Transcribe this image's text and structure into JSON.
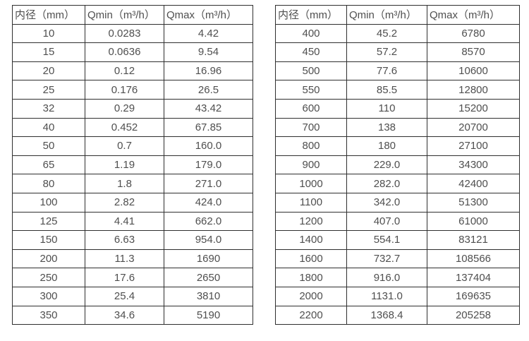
{
  "colors": {
    "background": "#ffffff",
    "border": "#2f2f2f",
    "text": "#4f4f4f"
  },
  "tables": [
    {
      "name": "flow-table-small-diameters",
      "headers": [
        "内径（mm）",
        "Qmin（m³/h）",
        "Qmax（m³/h）"
      ],
      "rows": [
        [
          "10",
          "0.0283",
          "4.42"
        ],
        [
          "15",
          "0.0636",
          "9.54"
        ],
        [
          "20",
          "0.12",
          "16.96"
        ],
        [
          "25",
          "0.176",
          "26.5"
        ],
        [
          "32",
          "0.29",
          "43.42"
        ],
        [
          "40",
          "0.452",
          "67.85"
        ],
        [
          "50",
          "0.7",
          "160.0"
        ],
        [
          "65",
          "1.19",
          "179.0"
        ],
        [
          "80",
          "1.8",
          "271.0"
        ],
        [
          "100",
          "2.82",
          "424.0"
        ],
        [
          "125",
          "4.41",
          "662.0"
        ],
        [
          "150",
          "6.63",
          "954.0"
        ],
        [
          "200",
          "11.3",
          "1690"
        ],
        [
          "250",
          "17.6",
          "2650"
        ],
        [
          "300",
          "25.4",
          "3810"
        ],
        [
          "350",
          "34.6",
          "5190"
        ]
      ]
    },
    {
      "name": "flow-table-large-diameters",
      "headers": [
        "内径（mm）",
        "Qmin（m³/h）",
        "Qmax（m³/h）"
      ],
      "rows": [
        [
          "400",
          "45.2",
          "6780"
        ],
        [
          "450",
          "57.2",
          "8570"
        ],
        [
          "500",
          "77.6",
          "10600"
        ],
        [
          "550",
          "85.5",
          "12800"
        ],
        [
          "600",
          "110",
          "15200"
        ],
        [
          "700",
          "138",
          "20700"
        ],
        [
          "800",
          "180",
          "27100"
        ],
        [
          "900",
          "229.0",
          "34300"
        ],
        [
          "1000",
          "282.0",
          "42400"
        ],
        [
          "1100",
          "342.0",
          "51300"
        ],
        [
          "1200",
          "407.0",
          "61000"
        ],
        [
          "1400",
          "554.1",
          "83121"
        ],
        [
          "1600",
          "732.7",
          "108566"
        ],
        [
          "1800",
          "916.0",
          "137404"
        ],
        [
          "2000",
          "1131.0",
          "169635"
        ],
        [
          "2200",
          "1368.4",
          "205258"
        ]
      ]
    }
  ]
}
